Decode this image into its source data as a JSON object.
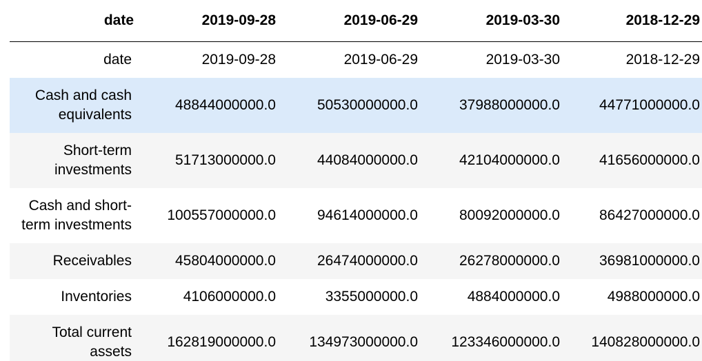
{
  "table": {
    "header": [
      "date",
      "2019-09-28",
      "2019-06-29",
      "2019-03-30",
      "2018-12-29"
    ],
    "rows": [
      {
        "label": "date",
        "values": [
          "2019-09-28",
          "2019-06-29",
          "2019-03-30",
          "2018-12-29"
        ]
      },
      {
        "label": "Cash and cash equivalents",
        "values": [
          "48844000000.0",
          "50530000000.0",
          "37988000000.0",
          "44771000000.0"
        ]
      },
      {
        "label": "Short-term investments",
        "values": [
          "51713000000.0",
          "44084000000.0",
          "42104000000.0",
          "41656000000.0"
        ]
      },
      {
        "label": "Cash and short-term investments",
        "values": [
          "100557000000.0",
          "94614000000.0",
          "80092000000.0",
          "86427000000.0"
        ]
      },
      {
        "label": "Receivables",
        "values": [
          "45804000000.0",
          "26474000000.0",
          "26278000000.0",
          "36981000000.0"
        ]
      },
      {
        "label": "Inventories",
        "values": [
          "4106000000.0",
          "3355000000.0",
          "4884000000.0",
          "4988000000.0"
        ]
      },
      {
        "label": "Total current assets",
        "values": [
          "162819000000.0",
          "134973000000.0",
          "123346000000.0",
          "140828000000.0"
        ]
      }
    ],
    "colors": {
      "hover_row": "#dbeafa",
      "striped_row": "#f5f5f5",
      "border": "#000000"
    }
  }
}
